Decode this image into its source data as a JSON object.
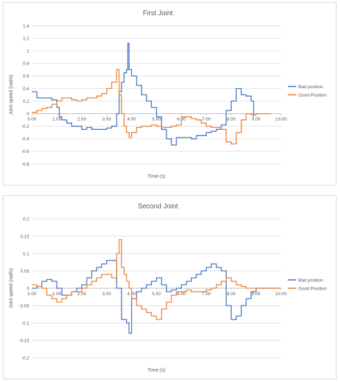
{
  "colors": {
    "bad": "#4472c4",
    "good": "#ed7d31",
    "grid": "#d9d9d9",
    "text": "#595959"
  },
  "chart_data": [
    {
      "type": "line",
      "title": "First Joint",
      "xlabel": "Time (s)",
      "ylabel": "Joint speed (rad/s)",
      "xlim": [
        0,
        10
      ],
      "ylim": [
        -0.8,
        1.4
      ],
      "yticks": [
        "-0.8",
        "-0.6",
        "-0.4",
        "-0.2",
        "0",
        "0.2",
        "0.4",
        "0.6",
        "0.8",
        "1",
        "1.2",
        "1.4"
      ],
      "ytick_values": [
        -0.8,
        -0.6,
        -0.4,
        -0.2,
        0,
        0.2,
        0.4,
        0.6,
        0.8,
        1,
        1.2,
        1.4
      ],
      "xticks": [
        "0.00",
        "1.00",
        "2.00",
        "3.00",
        "4.00",
        "5.00",
        "6.00",
        "7.00",
        "8.00",
        "9.00",
        "10.00"
      ],
      "xtick_values": [
        0,
        1,
        2,
        3,
        4,
        5,
        6,
        7,
        8,
        9,
        10
      ],
      "grid": true,
      "legend": "right",
      "series": [
        {
          "name": "Bad position",
          "color": "#4472c4",
          "x": [
            0,
            0.2,
            0.4,
            0.6,
            0.8,
            1.0,
            1.1,
            1.2,
            1.4,
            1.6,
            1.8,
            2.0,
            2.2,
            2.4,
            2.6,
            2.8,
            3.0,
            3.2,
            3.4,
            3.5,
            3.6,
            3.7,
            3.8,
            3.85,
            3.9,
            4.0,
            4.2,
            4.4,
            4.6,
            4.8,
            5.0,
            5.2,
            5.4,
            5.6,
            5.8,
            6.0,
            6.2,
            6.4,
            6.6,
            6.8,
            7.0,
            7.2,
            7.4,
            7.6,
            7.8,
            8.0,
            8.2,
            8.4,
            8.6,
            8.8,
            8.9
          ],
          "y": [
            0.35,
            0.25,
            0.25,
            0.25,
            0.22,
            0.1,
            -0.05,
            -0.1,
            -0.15,
            -0.2,
            -0.2,
            -0.25,
            -0.22,
            -0.25,
            -0.25,
            -0.25,
            -0.23,
            -0.2,
            0.0,
            0.35,
            0.5,
            0.65,
            0.7,
            1.12,
            0.7,
            0.6,
            0.45,
            0.3,
            0.2,
            0.1,
            -0.05,
            -0.25,
            -0.4,
            -0.5,
            -0.38,
            -0.38,
            -0.38,
            -0.4,
            -0.35,
            -0.35,
            -0.3,
            -0.28,
            -0.25,
            -0.18,
            0.05,
            0.2,
            0.4,
            0.3,
            0.28,
            0.2,
            -0.05
          ]
        },
        {
          "name": "Good Position",
          "color": "#ed7d31",
          "x": [
            0,
            0.2,
            0.4,
            0.6,
            0.8,
            1.0,
            1.2,
            1.4,
            1.6,
            1.8,
            2.0,
            2.2,
            2.4,
            2.6,
            2.8,
            3.0,
            3.2,
            3.4,
            3.5,
            3.6,
            3.7,
            3.8,
            3.9,
            4.0,
            4.2,
            4.4,
            4.6,
            4.8,
            5.0,
            5.2,
            5.4,
            5.6,
            5.8,
            6.0,
            6.2,
            6.4,
            6.6,
            6.8,
            7.0,
            7.2,
            7.4,
            7.6,
            7.8,
            8.0,
            8.2,
            8.4,
            8.6,
            8.8,
            9.0,
            9.2,
            9.5,
            9.6
          ],
          "y": [
            0.02,
            0.05,
            0.08,
            0.1,
            0.15,
            0.2,
            0.25,
            0.25,
            0.22,
            0.2,
            0.22,
            0.25,
            0.25,
            0.28,
            0.32,
            0.4,
            0.5,
            0.7,
            0.3,
            0.0,
            -0.2,
            -0.3,
            -0.38,
            -0.3,
            -0.22,
            -0.2,
            -0.2,
            -0.18,
            -0.2,
            -0.22,
            -0.22,
            -0.2,
            -0.18,
            -0.05,
            -0.05,
            -0.08,
            -0.1,
            -0.15,
            -0.2,
            -0.22,
            -0.22,
            -0.25,
            -0.45,
            -0.48,
            -0.3,
            -0.1,
            0.0,
            -0.02,
            0.0,
            0.0,
            0.0,
            0.0
          ]
        }
      ]
    },
    {
      "type": "line",
      "title": "Second Joint",
      "xlabel": "Time (s)",
      "ylabel": "Joint speed (rad/s)",
      "xlim": [
        0,
        10
      ],
      "ylim": [
        -0.2,
        0.2
      ],
      "yticks": [
        "-0.2",
        "-0.15",
        "-0.1",
        "-0.05",
        "0",
        "0.05",
        "0.1",
        "0.15",
        "0.2"
      ],
      "ytick_values": [
        -0.2,
        -0.15,
        -0.1,
        -0.05,
        0,
        0.05,
        0.1,
        0.15,
        0.2
      ],
      "xticks": [
        "0.00",
        "1.00",
        "2.00",
        "3.00",
        "4.00",
        "5.00",
        "6.00",
        "7.00",
        "8.00",
        "9.00",
        "10.00"
      ],
      "xtick_values": [
        0,
        1,
        2,
        3,
        4,
        5,
        6,
        7,
        8,
        9,
        10
      ],
      "grid": true,
      "legend": "right",
      "series": [
        {
          "name": "Bad position",
          "color": "#4472c4",
          "x": [
            0,
            0.2,
            0.4,
            0.6,
            0.8,
            1.0,
            1.2,
            1.4,
            1.6,
            1.8,
            2.0,
            2.2,
            2.4,
            2.6,
            2.8,
            3.0,
            3.2,
            3.4,
            3.6,
            3.8,
            3.9,
            4.0,
            4.2,
            4.4,
            4.6,
            4.8,
            5.0,
            5.2,
            5.4,
            5.6,
            5.8,
            6.0,
            6.2,
            6.4,
            6.6,
            6.8,
            7.0,
            7.2,
            7.4,
            7.6,
            7.8,
            8.0,
            8.2,
            8.4,
            8.6,
            8.8,
            9.0,
            9.2,
            9.4,
            9.6,
            10.0
          ],
          "y": [
            0.0,
            0.005,
            0.02,
            0.025,
            0.02,
            0.0,
            -0.02,
            -0.02,
            -0.01,
            0.0,
            0.01,
            0.03,
            0.05,
            0.06,
            0.07,
            0.08,
            0.08,
            0.0,
            -0.09,
            -0.1,
            -0.13,
            -0.03,
            -0.01,
            0.0,
            0.01,
            0.02,
            0.03,
            0.01,
            -0.01,
            -0.005,
            0.0,
            0.01,
            0.02,
            0.03,
            0.04,
            0.05,
            0.06,
            0.07,
            0.06,
            0.05,
            -0.05,
            -0.09,
            -0.08,
            -0.05,
            -0.03,
            -0.01,
            0.0,
            0.0,
            0.0,
            0.0,
            0.0
          ]
        },
        {
          "name": "Good Position",
          "color": "#ed7d31",
          "x": [
            0,
            0.2,
            0.4,
            0.6,
            0.8,
            1.0,
            1.2,
            1.4,
            1.6,
            1.8,
            2.0,
            2.2,
            2.4,
            2.6,
            2.8,
            3.0,
            3.2,
            3.4,
            3.5,
            3.6,
            3.7,
            3.8,
            3.9,
            4.0,
            4.2,
            4.4,
            4.6,
            4.8,
            5.0,
            5.2,
            5.4,
            5.6,
            5.8,
            6.0,
            6.2,
            6.4,
            6.6,
            6.8,
            7.0,
            7.2,
            7.4,
            7.6,
            7.8,
            8.0,
            8.2,
            8.4,
            8.6,
            8.8,
            9.0,
            9.4,
            10.0
          ],
          "y": [
            0.01,
            0.005,
            0.0,
            -0.02,
            -0.03,
            -0.04,
            -0.03,
            -0.02,
            -0.01,
            -0.01,
            0.0,
            0.01,
            0.02,
            0.03,
            0.04,
            0.04,
            0.03,
            0.1,
            0.14,
            0.06,
            0.04,
            0.02,
            0.0,
            -0.03,
            -0.05,
            -0.06,
            -0.07,
            -0.08,
            -0.09,
            -0.06,
            -0.04,
            -0.02,
            -0.01,
            -0.01,
            -0.005,
            -0.01,
            -0.01,
            -0.01,
            -0.005,
            0.0,
            0.01,
            0.02,
            0.03,
            0.02,
            0.01,
            0.005,
            0.0,
            0.0,
            0.0,
            0.0,
            0.0
          ]
        }
      ]
    }
  ]
}
